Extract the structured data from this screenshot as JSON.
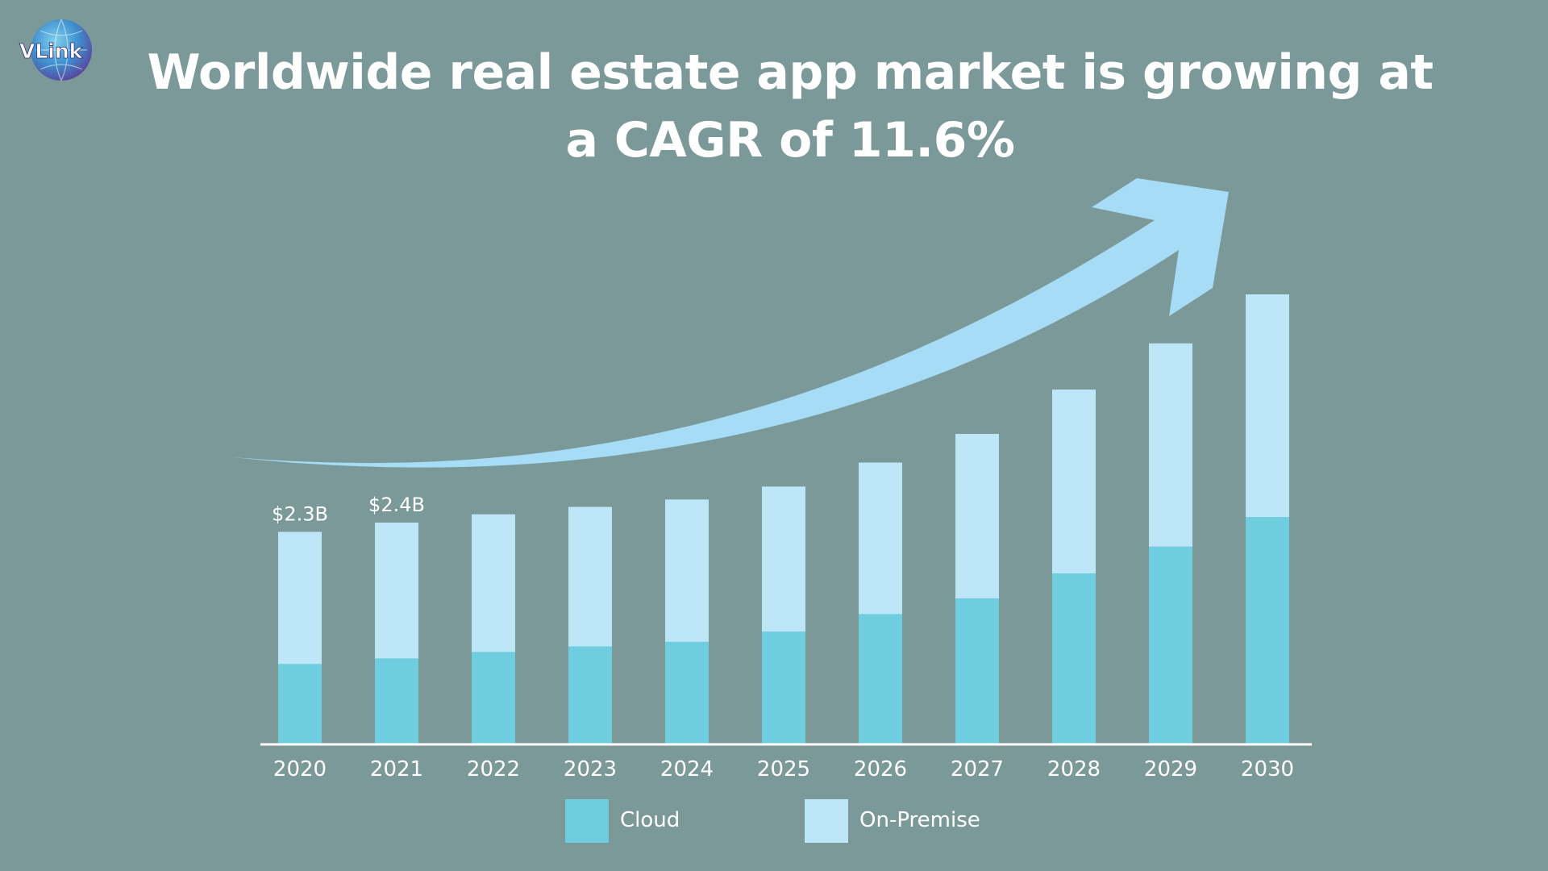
{
  "title": "Worldwide real estate app market is growing at a CAGR of 11.6%",
  "brand": {
    "logo_text": "VLink"
  },
  "colors": {
    "background": "#7c9999",
    "cloud": "#6ecddf",
    "on_premise": "#bee6f9",
    "arrow": "#a6dcf6",
    "axis": "#ffffff"
  },
  "chart_data": {
    "type": "bar",
    "stacked": true,
    "title": "Worldwide real estate app market is growing at a CAGR of 11.6%",
    "xlabel": "",
    "ylabel": "",
    "categories": [
      "2020",
      "2021",
      "2022",
      "2023",
      "2024",
      "2025",
      "2026",
      "2027",
      "2028",
      "2029",
      "2030"
    ],
    "series": [
      {
        "name": "Cloud",
        "values": [
          0.87,
          0.93,
          1.0,
          1.06,
          1.11,
          1.22,
          1.41,
          1.58,
          1.85,
          2.14,
          2.46
        ]
      },
      {
        "name": "On-Premise",
        "values": [
          1.43,
          1.47,
          1.49,
          1.51,
          1.54,
          1.57,
          1.64,
          1.78,
          1.99,
          2.2,
          2.41
        ]
      }
    ],
    "data_labels": [
      {
        "category": "2020",
        "text": "$2.3B"
      },
      {
        "category": "2021",
        "text": "$2.4B"
      }
    ],
    "ylim": [
      0,
      4.87
    ],
    "grid": false,
    "legend": {
      "position": "bottom",
      "entries": [
        "Cloud",
        "On-Premise"
      ]
    },
    "annotation": "upward growth arrow"
  }
}
